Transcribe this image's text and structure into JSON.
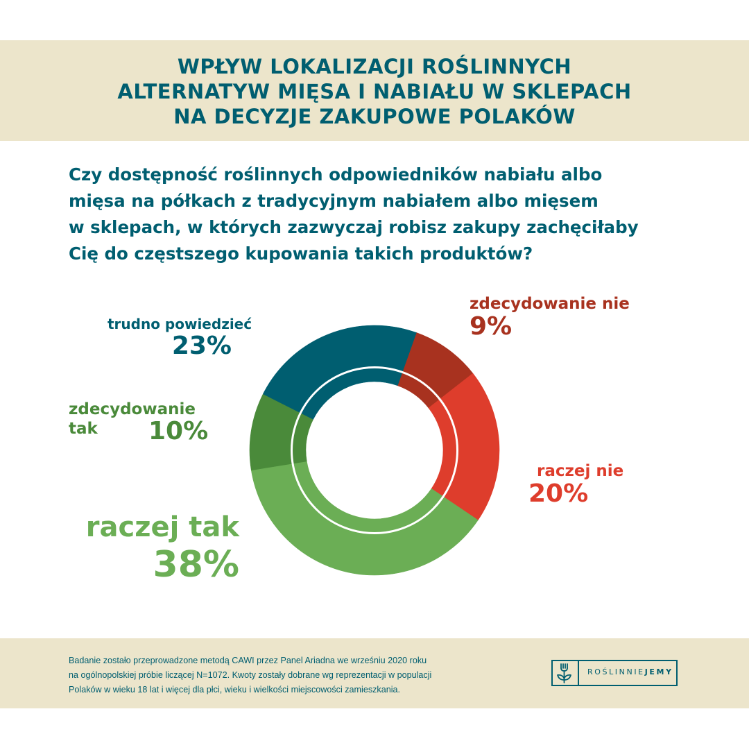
{
  "header": {
    "title_lines": [
      "WPŁYW LOKALIZACJI ROŚLINNYCH",
      "ALTERNATYW MIĘSA I NABIAŁU W SKLEPACH",
      "NA DECYZJE ZAKUPOWE POLAKÓW"
    ]
  },
  "question": {
    "lines": [
      "Czy dostępność roślinnych odpowiedników nabiału albo",
      "mięsa na półkach z tradycyjnym nabiałem albo mięsem",
      "w sklepach, w których zazwyczaj robisz zakupy zachęciłaby",
      "Cię do częstszego kupowania takich produktów?"
    ]
  },
  "chart_data": {
    "type": "pie",
    "variant": "donut",
    "title": "Czy dostępność roślinnych odpowiedników nabiału albo mięsa na półkach z tradycyjnym nabiałem albo mięsem w sklepach, w których zazwyczaj robisz zakupy zachęciłaby Cię do częstszego kupowania takich produktów?",
    "unit": "%",
    "order": "clockwise",
    "slices": [
      {
        "label": "zdecydowanie nie",
        "value": 9,
        "value_label": "9%",
        "color": "#A8321F"
      },
      {
        "label": "raczej nie",
        "value": 20,
        "value_label": "20%",
        "color": "#DE3D2C"
      },
      {
        "label": "raczej tak",
        "value": 38,
        "value_label": "38%",
        "color": "#6BAE55"
      },
      {
        "label": "zdecydowanie tak",
        "value": 10,
        "value_label": "10%",
        "color": "#4A8A3A"
      },
      {
        "label": "trudno powiedzieć",
        "value": 23,
        "value_label": "23%",
        "color": "#005E70"
      }
    ],
    "label_lines": {
      "zdecydowanie_tak": [
        "zdecydowanie",
        "tak"
      ]
    }
  },
  "footer": {
    "note_lines": [
      "Badanie zostało przeprowadzone metodą CAWI przez Panel Ariadna we wrześniu 2020 roku",
      "na ogólnopolskiej próbie liczącej N=1072. Kwoty zostały dobrane wg reprezentacji w populacji",
      "Polaków w wieku 18 lat i więcej dla płci, wieku i wielkości miejscowości zamieszkania."
    ],
    "logo": {
      "text_light": "ROŚLINNIE",
      "text_bold": "JEMY",
      "icon": "fork-sprout-icon"
    }
  },
  "colors": {
    "primary": "#005E70",
    "band": "#ECE5CB"
  }
}
